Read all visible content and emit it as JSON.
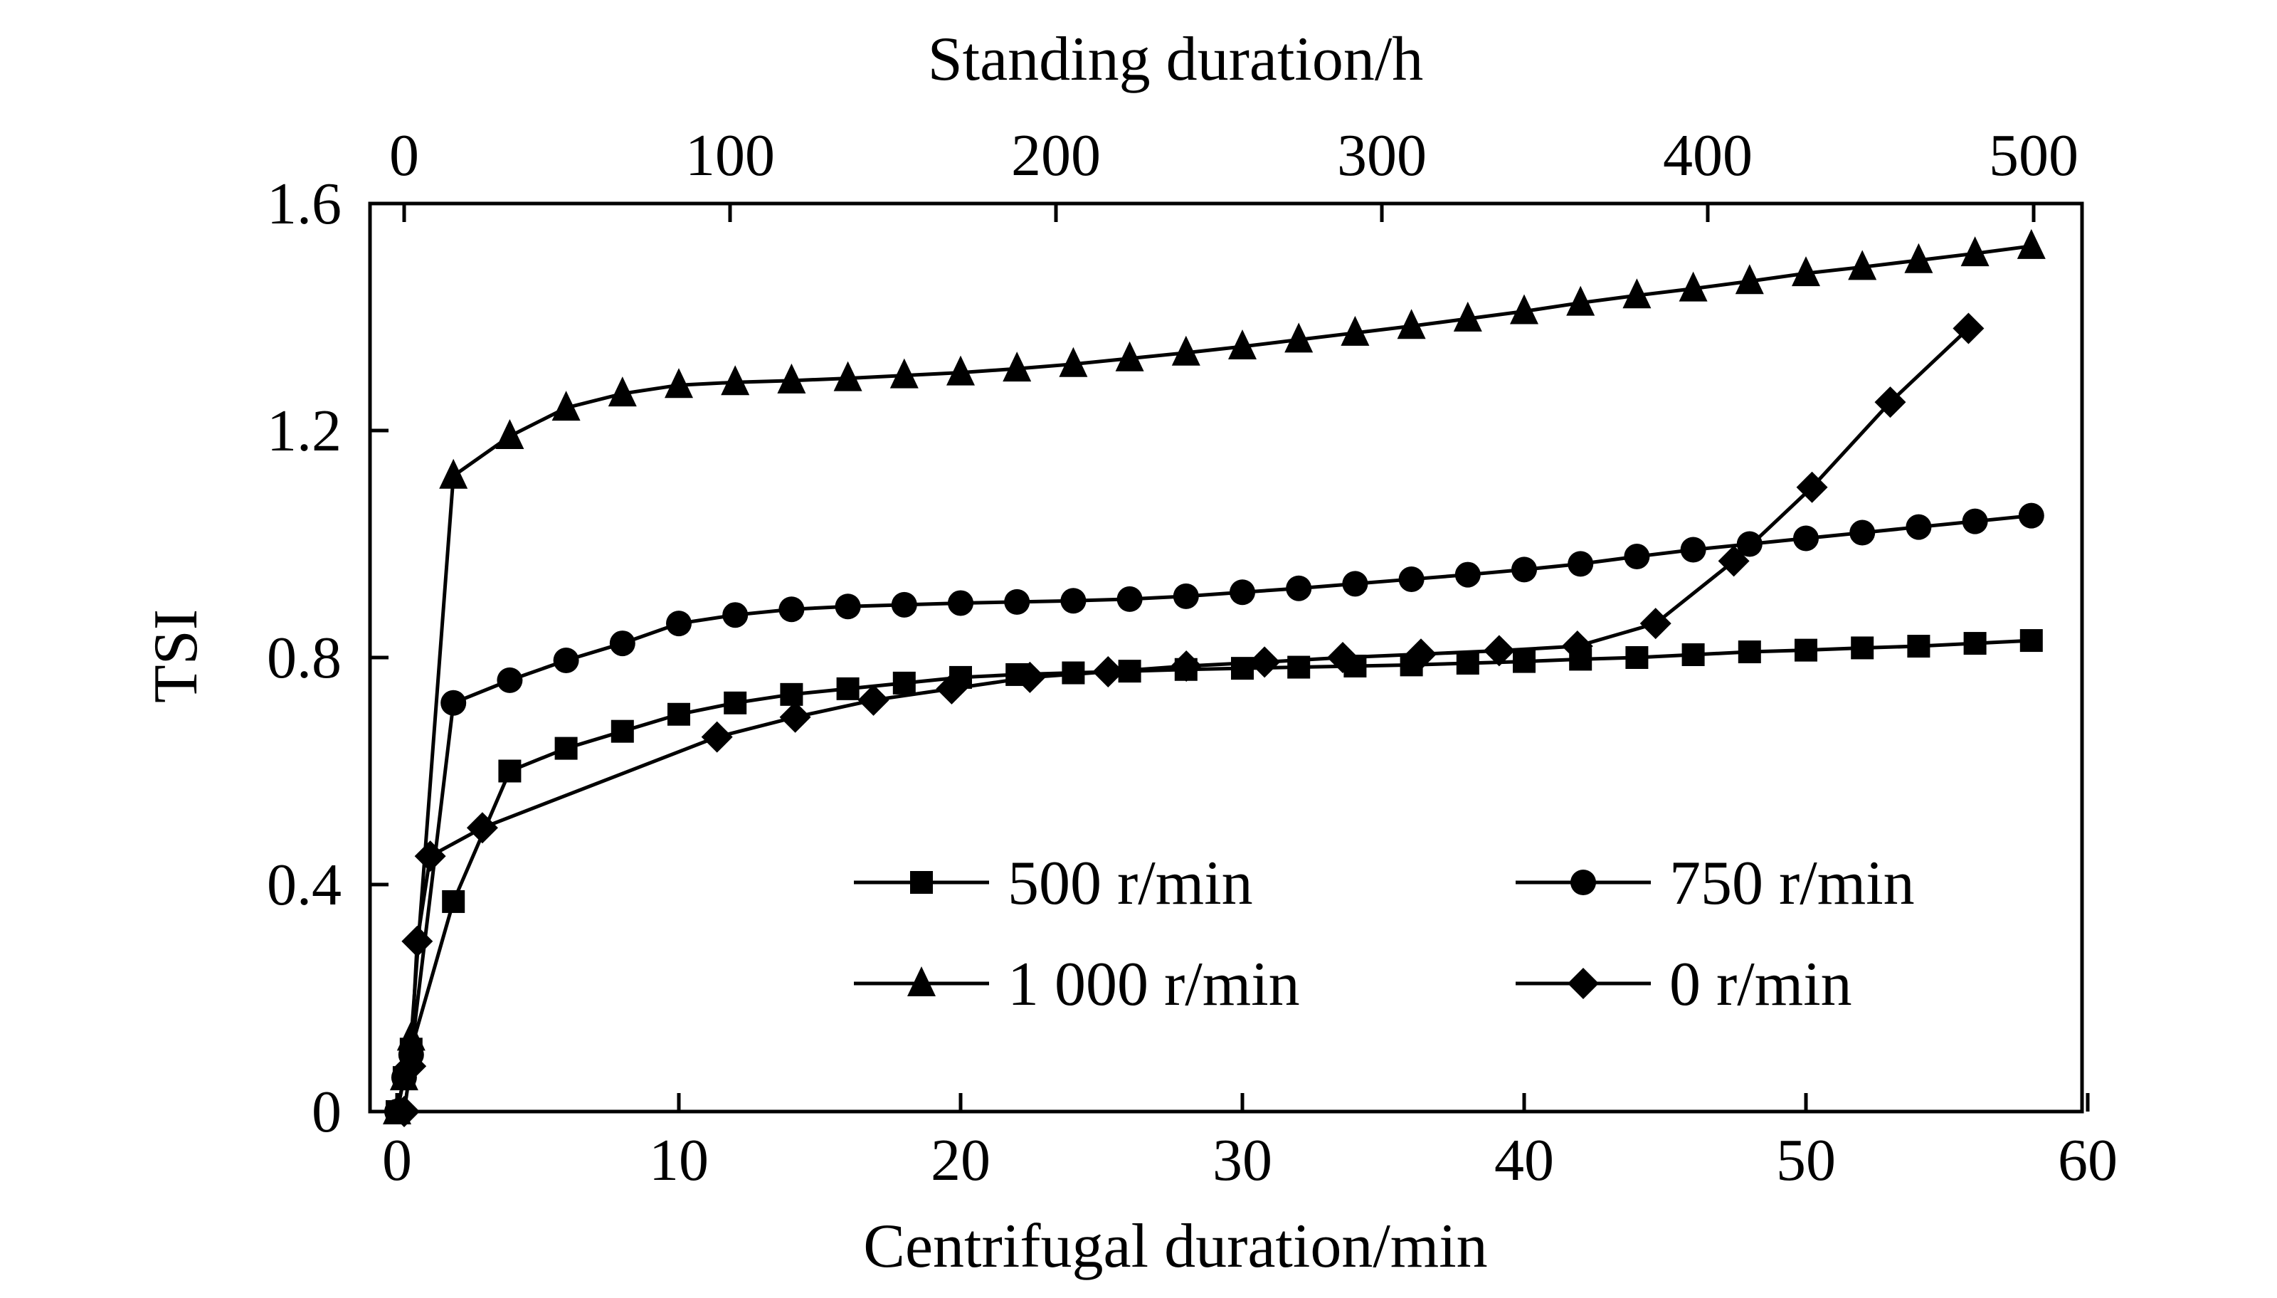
{
  "chart_data": {
    "type": "line",
    "title": "",
    "xlabel": "Centrifugal duration/min",
    "x2label": "Standing duration/h",
    "ylabel": "TSI",
    "xlim": [
      0,
      60
    ],
    "x2lim": [
      0,
      500
    ],
    "ylim": [
      0,
      1.6
    ],
    "x_ticks": [
      "0",
      "10",
      "20",
      "30",
      "40",
      "50",
      "60"
    ],
    "x2_ticks": [
      "0",
      "100",
      "200",
      "300",
      "400",
      "500"
    ],
    "y_ticks": [
      "0",
      "0.4",
      "0.8",
      "1.2",
      "1.6"
    ],
    "grid": false,
    "legend_position": "bottom-right",
    "series": [
      {
        "name": "500 r/min",
        "marker": "square",
        "axis": "bottom",
        "x": [
          0,
          0.25,
          0.5,
          2,
          4,
          6,
          8,
          10,
          12,
          14,
          16,
          18,
          20,
          22,
          24,
          26,
          28,
          30,
          32,
          34,
          36,
          38,
          40,
          42,
          44,
          46,
          48,
          50,
          52,
          54,
          56,
          58
        ],
        "y": [
          0,
          0.06,
          0.11,
          0.37,
          0.6,
          0.64,
          0.67,
          0.7,
          0.72,
          0.735,
          0.745,
          0.755,
          0.765,
          0.77,
          0.773,
          0.776,
          0.779,
          0.781,
          0.783,
          0.785,
          0.787,
          0.79,
          0.793,
          0.797,
          0.8,
          0.805,
          0.81,
          0.813,
          0.817,
          0.82,
          0.825,
          0.83
        ]
      },
      {
        "name": "750 r/min",
        "marker": "circle",
        "axis": "bottom",
        "x": [
          0,
          0.25,
          0.5,
          2,
          4,
          6,
          8,
          10,
          12,
          14,
          16,
          18,
          20,
          22,
          24,
          26,
          28,
          30,
          32,
          34,
          36,
          38,
          40,
          42,
          44,
          46,
          48,
          50,
          52,
          54,
          56,
          58
        ],
        "y": [
          0,
          0.06,
          0.1,
          0.72,
          0.76,
          0.795,
          0.825,
          0.86,
          0.875,
          0.885,
          0.89,
          0.893,
          0.896,
          0.898,
          0.9,
          0.903,
          0.908,
          0.915,
          0.922,
          0.93,
          0.938,
          0.946,
          0.955,
          0.965,
          0.978,
          0.99,
          1.0,
          1.01,
          1.02,
          1.03,
          1.04,
          1.05
        ]
      },
      {
        "name": "1 000 r/min",
        "marker": "triangle",
        "axis": "bottom",
        "x": [
          0,
          0.25,
          0.5,
          2,
          4,
          6,
          8,
          10,
          12,
          14,
          16,
          18,
          20,
          22,
          24,
          26,
          28,
          30,
          32,
          34,
          36,
          38,
          40,
          42,
          44,
          46,
          48,
          50,
          52,
          54,
          56,
          58
        ],
        "y": [
          0,
          0.06,
          0.13,
          1.12,
          1.19,
          1.24,
          1.265,
          1.28,
          1.285,
          1.288,
          1.292,
          1.297,
          1.302,
          1.309,
          1.317,
          1.327,
          1.337,
          1.348,
          1.36,
          1.372,
          1.384,
          1.397,
          1.41,
          1.425,
          1.438,
          1.45,
          1.463,
          1.477,
          1.488,
          1.5,
          1.512,
          1.525
        ]
      },
      {
        "name": "0 r/min",
        "marker": "diamond",
        "axis": "top",
        "x": [
          0,
          2,
          4,
          8,
          24,
          96,
          120,
          144,
          168,
          192,
          216,
          240,
          264,
          288,
          312,
          336,
          360,
          384,
          408,
          432,
          456,
          480
        ],
        "y": [
          0,
          0.08,
          0.3,
          0.45,
          0.5,
          0.66,
          0.695,
          0.725,
          0.745,
          0.765,
          0.775,
          0.785,
          0.792,
          0.8,
          0.806,
          0.812,
          0.82,
          0.86,
          0.97,
          1.1,
          1.25,
          1.38
        ]
      }
    ]
  }
}
